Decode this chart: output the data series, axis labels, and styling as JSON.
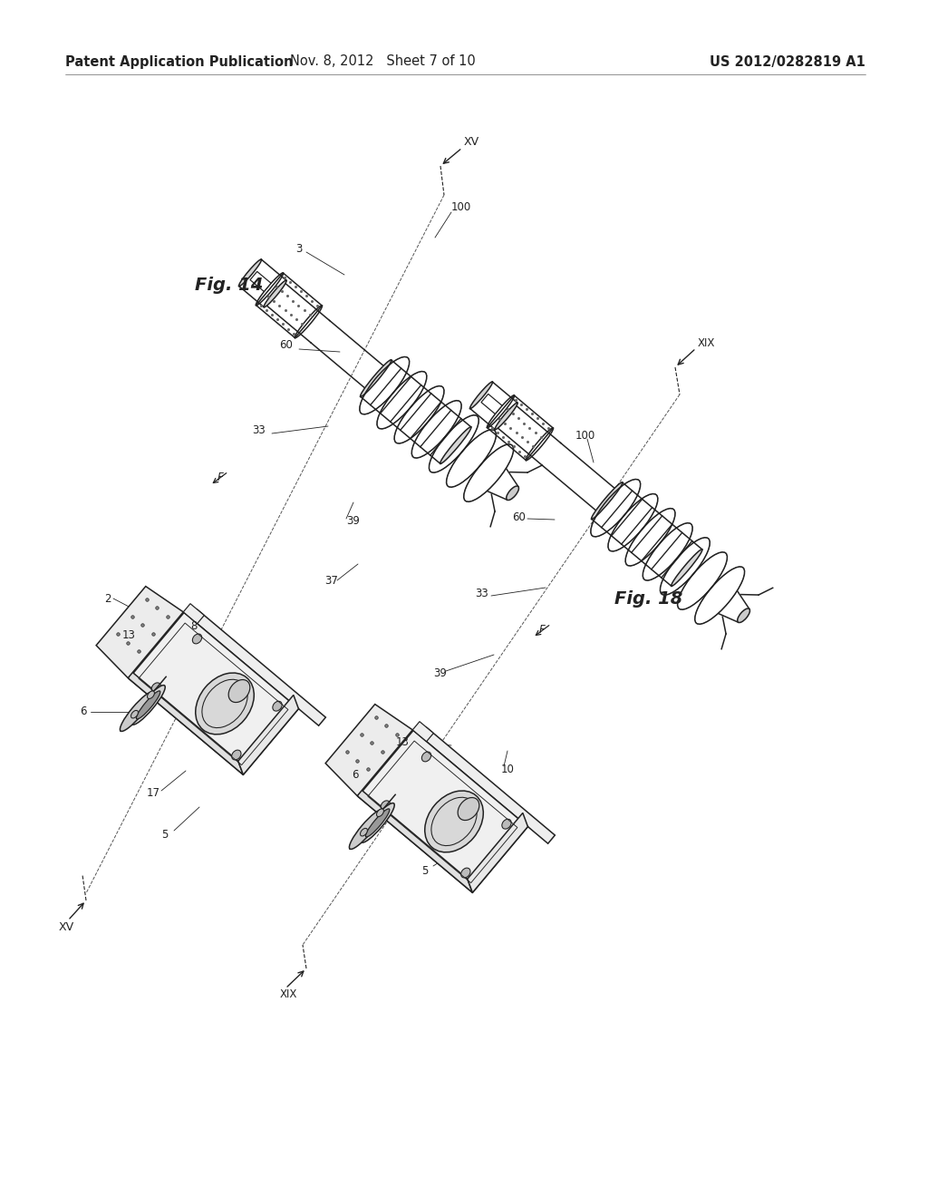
{
  "bg_color": "#ffffff",
  "header_left": "Patent Application Publication",
  "header_mid": "Nov. 8, 2012   Sheet 7 of 10",
  "header_right": "US 2012/0282819 A1",
  "line_color": "#222222",
  "gray_light": "#e8e8e8",
  "gray_mid": "#cccccc",
  "gray_dark": "#aaaaaa",
  "stipple": "#888888",
  "fig14_label": "Fig. 14",
  "fig18_label": "Fig. 18",
  "header_fontsize": 10.5,
  "label_fontsize": 8.5
}
